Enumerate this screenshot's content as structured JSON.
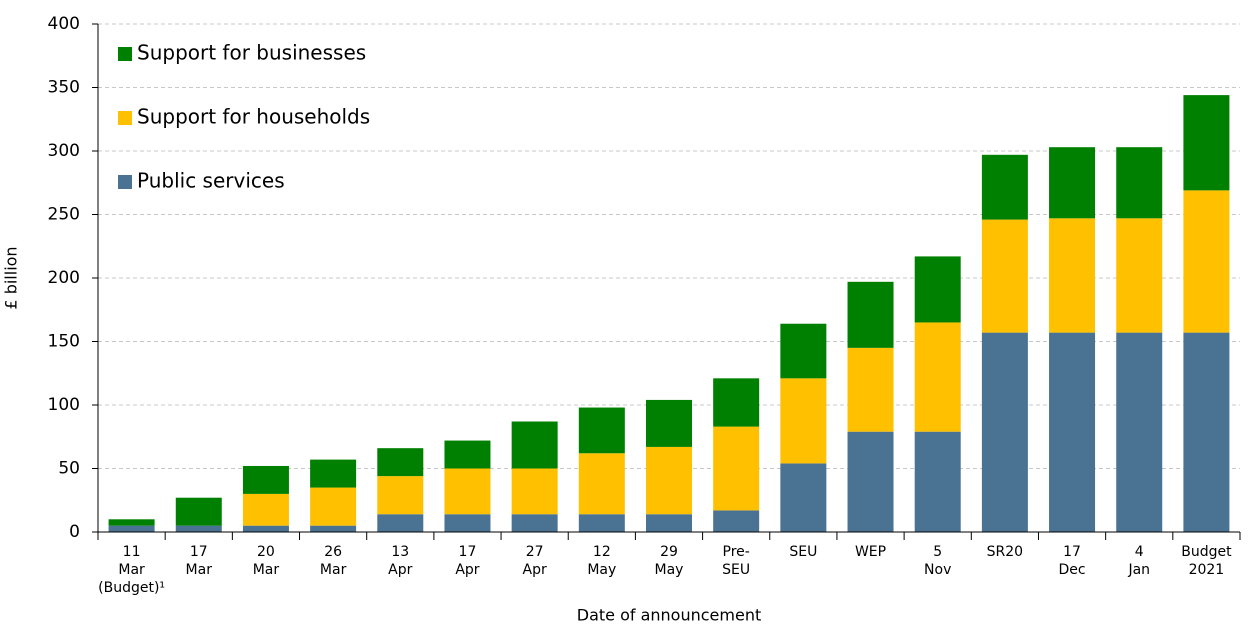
{
  "chart_data": {
    "type": "stacked_bar",
    "y_label": "£ billion",
    "x_label": "Date of announcement",
    "categories": [
      "11\nMar\n(Budget)¹",
      "17\nMar",
      "20\nMar",
      "26\nMar",
      "13\nApr",
      "17\nApr",
      "27\nApr",
      "12\nMay",
      "29\nMay",
      "Pre-\nSEU",
      "SEU",
      "WEP",
      "5\nNov",
      "SR20",
      "17\nDec",
      "4\nJan",
      "Budget\n2021"
    ],
    "series": [
      {
        "name": "Public services",
        "color": "#4a7393",
        "values": [
          5,
          5,
          5,
          5,
          14,
          14,
          14,
          14,
          14,
          17,
          54,
          79,
          79,
          157,
          157,
          157,
          157
        ]
      },
      {
        "name": "Support for households",
        "color": "#ffc000",
        "values": [
          0,
          0,
          25,
          30,
          30,
          36,
          36,
          48,
          53,
          66,
          67,
          66,
          86,
          89,
          90,
          90,
          112
        ]
      },
      {
        "name": "Support for businesses",
        "color": "#008000",
        "values": [
          5,
          22,
          22,
          22,
          22,
          22,
          37,
          36,
          37,
          38,
          43,
          52,
          52,
          51,
          56,
          56,
          75
        ]
      }
    ],
    "ylim": [
      0,
      400
    ],
    "yticks": [
      0,
      50,
      100,
      150,
      200,
      250,
      300,
      350,
      400
    ],
    "grid": true,
    "legend": "upper left"
  }
}
